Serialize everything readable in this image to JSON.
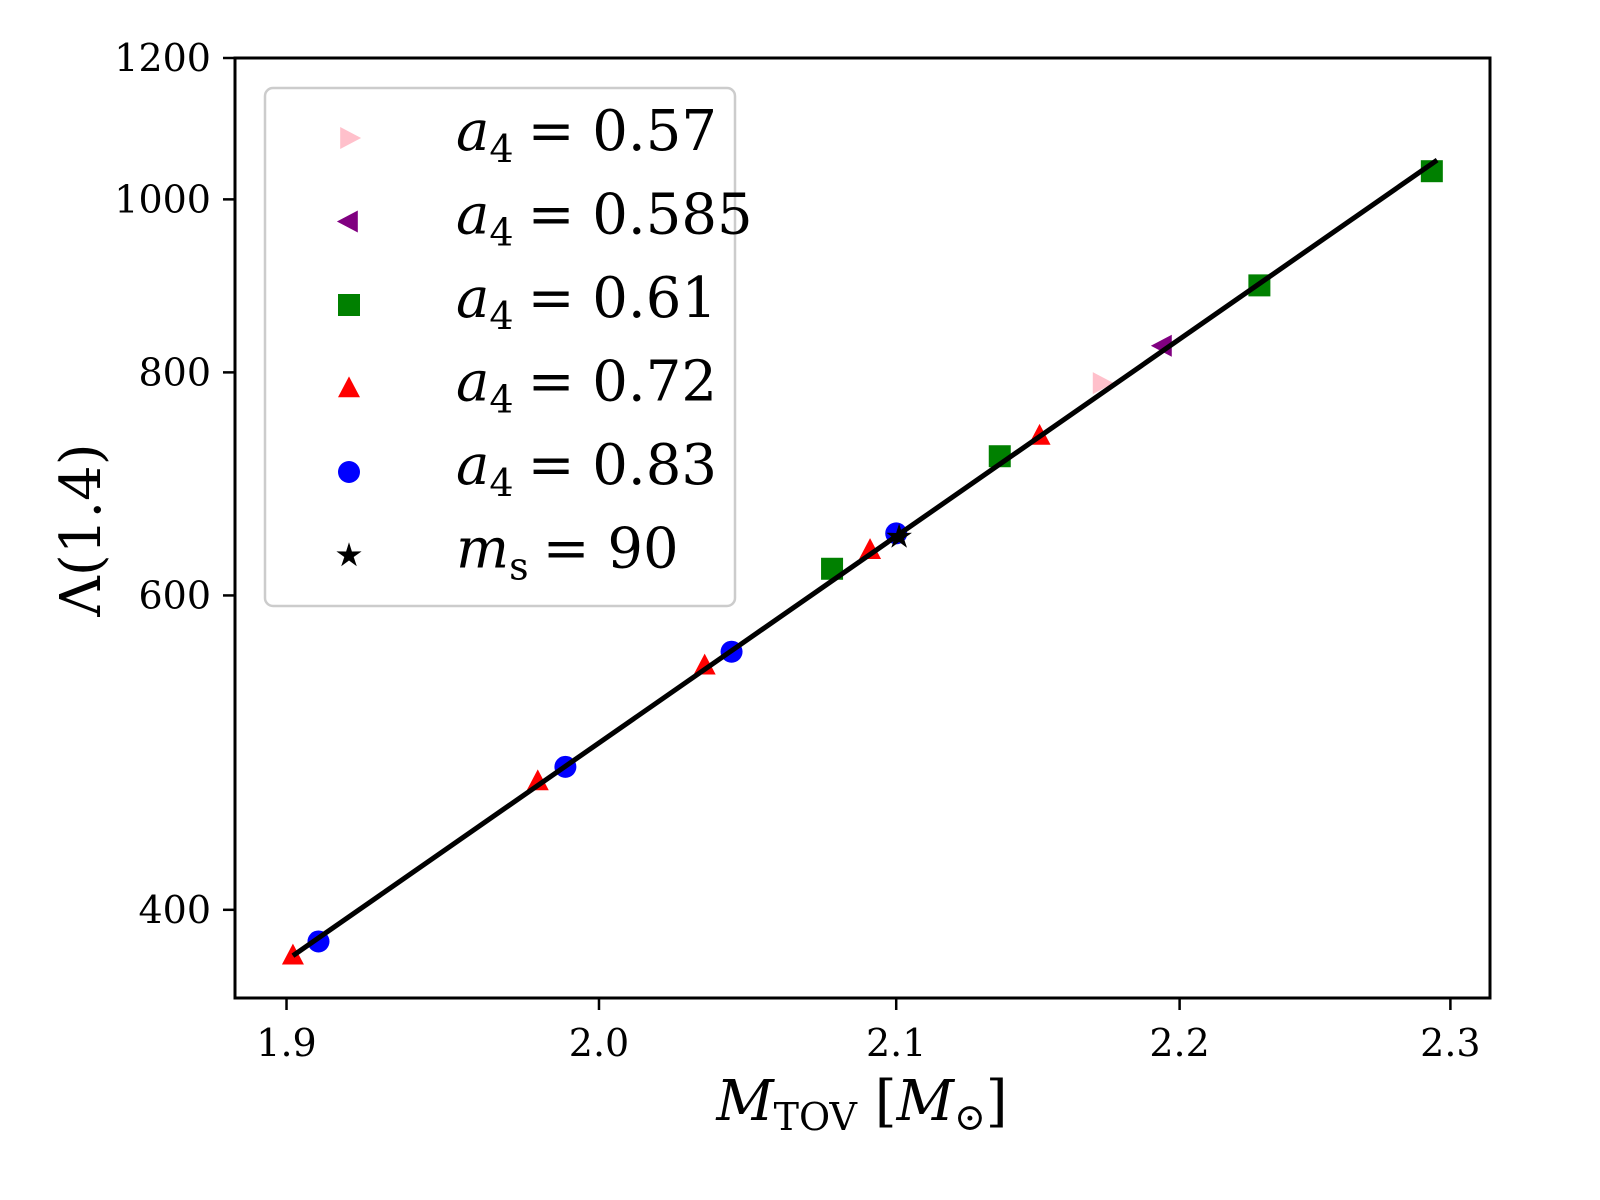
{
  "chart_data": {
    "type": "scatter",
    "xscale": "log",
    "yscale": "log",
    "xlabel": {
      "main": "M",
      "sub": "TOV",
      "unit_main": "M",
      "unit_sub": "⊙"
    },
    "ylabel": "Λ(1.4)",
    "xlim": [
      1.884,
      2.315
    ],
    "ylim": [
      357,
      1200
    ],
    "xticks": [
      1.9,
      2.0,
      2.1,
      2.2,
      2.3
    ],
    "xtick_labels": [
      "1.9",
      "2.0",
      "2.1",
      "2.2",
      "2.3"
    ],
    "yticks": [
      400,
      600,
      800,
      1000,
      1200
    ],
    "ytick_labels": [
      "400",
      "600",
      "800",
      "1000",
      "1200"
    ],
    "grid": false,
    "legend_placement": "upper-left",
    "series": [
      {
        "name": "a4 = 0.57",
        "label_var": "a",
        "label_sub": "4",
        "label_eq": "= 0.57",
        "marker": "triangle-right",
        "color": "#ffc0cb",
        "points": [
          [
            2.172,
            789
          ]
        ]
      },
      {
        "name": "a4 = 0.585",
        "label_var": "a",
        "label_sub": "4",
        "label_eq": "= 0.585",
        "marker": "triangle-left",
        "color": "#800080",
        "points": [
          [
            2.194,
            828
          ]
        ]
      },
      {
        "name": "a4 = 0.61",
        "label_var": "a",
        "label_sub": "4",
        "label_eq": "= 0.61",
        "marker": "square",
        "color": "#008000",
        "points": [
          [
            2.078,
            621
          ],
          [
            2.136,
            718
          ],
          [
            2.229,
            895
          ],
          [
            2.293,
            1037
          ]
        ]
      },
      {
        "name": "a4 = 0.72",
        "label_var": "a",
        "label_sub": "4",
        "label_eq": "= 0.72",
        "marker": "triangle-up",
        "color": "#ff0000",
        "points": [
          [
            1.902,
            377
          ],
          [
            1.98,
            472
          ],
          [
            2.035,
            548
          ],
          [
            2.091,
            636
          ],
          [
            2.15,
            737
          ]
        ]
      },
      {
        "name": "a4 = 0.83",
        "label_var": "a",
        "label_sub": "4",
        "label_eq": "= 0.83",
        "marker": "circle",
        "color": "#0000ff",
        "points": [
          [
            1.91,
            384
          ],
          [
            1.989,
            481
          ],
          [
            2.044,
            558
          ],
          [
            2.1,
            650
          ]
        ]
      },
      {
        "name": "ms = 90",
        "label_var": "m",
        "label_sub": "s",
        "label_eq": "= 90",
        "marker": "star",
        "color": "#000000",
        "points": [
          [
            2.101,
            647
          ]
        ]
      }
    ],
    "fit_line": {
      "color": "#000000",
      "points": [
        [
          1.902,
          377
        ],
        [
          2.295,
          1052
        ]
      ]
    }
  }
}
